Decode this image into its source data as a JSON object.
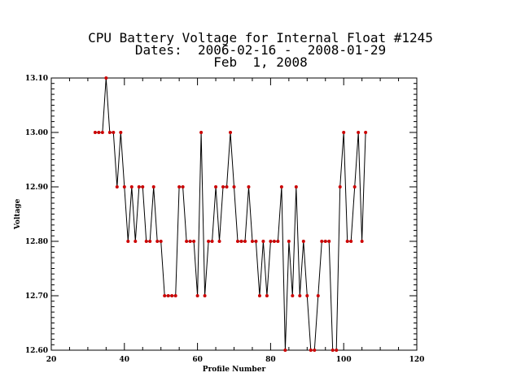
{
  "title": {
    "line1": "CPU Battery Voltage for Internal Float #1245",
    "line2": "Dates:  2006-02-16 -  2008-01-29",
    "line3": "Feb  1, 2008"
  },
  "colors": {
    "line": "#000000",
    "marker": "#cc0000",
    "axis": "#000000"
  },
  "chart_data": {
    "type": "line",
    "title": "CPU Battery Voltage for Internal Float #1245",
    "xlabel": "Profile Number",
    "ylabel": "Voltage",
    "xlim": [
      20,
      120
    ],
    "ylim": [
      12.6,
      13.1
    ],
    "xticks": [
      20,
      40,
      60,
      80,
      100,
      120
    ],
    "xtick_labels": [
      "20",
      "40",
      "60",
      "80",
      "100",
      "120"
    ],
    "yticks": [
      12.6,
      12.7,
      12.8,
      12.9,
      13.0,
      13.1
    ],
    "ytick_labels": [
      "12.60",
      "12.70",
      "12.80",
      "12.90",
      "13.00",
      "13.10"
    ],
    "grid": false,
    "series": [
      {
        "x": [
          32,
          33,
          34,
          35,
          36,
          37,
          38,
          39,
          40,
          41,
          42,
          43,
          44,
          45,
          46,
          47,
          48,
          49,
          50,
          51,
          52,
          53,
          54,
          55,
          56,
          57,
          58,
          59,
          60,
          61,
          62,
          63,
          64,
          65,
          66,
          67,
          68,
          69,
          70,
          71,
          72,
          73,
          74,
          75,
          76,
          77,
          78,
          79,
          80,
          81,
          82,
          83,
          84,
          85,
          86,
          87,
          88,
          89,
          90,
          91,
          92,
          93,
          94,
          95,
          96,
          97,
          98,
          99,
          100,
          101,
          102,
          103,
          104,
          105,
          106
        ],
        "y": [
          13.0,
          13.0,
          13.0,
          13.1,
          13.0,
          13.0,
          12.9,
          13.0,
          12.9,
          12.8,
          12.9,
          12.8,
          12.9,
          12.9,
          12.8,
          12.8,
          12.9,
          12.8,
          12.8,
          12.7,
          12.7,
          12.7,
          12.7,
          12.9,
          12.9,
          12.8,
          12.8,
          12.8,
          12.7,
          13.0,
          12.7,
          12.8,
          12.8,
          12.9,
          12.8,
          12.9,
          12.9,
          13.0,
          12.9,
          12.8,
          12.8,
          12.8,
          12.9,
          12.8,
          12.8,
          12.7,
          12.8,
          12.7,
          12.8,
          12.8,
          12.8,
          12.9,
          12.6,
          12.8,
          12.7,
          12.9,
          12.7,
          12.8,
          12.7,
          12.6,
          12.6,
          12.7,
          12.8,
          12.8,
          12.8,
          12.6,
          12.6,
          12.9,
          13.0,
          12.8,
          12.8,
          12.9,
          13.0,
          12.8,
          13.0
        ]
      }
    ]
  }
}
